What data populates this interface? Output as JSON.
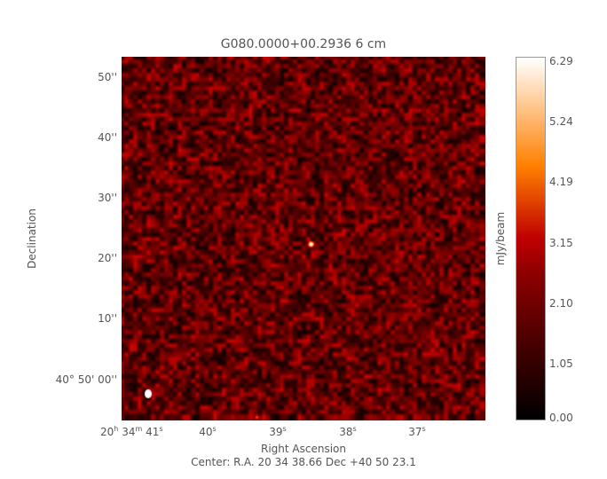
{
  "chart_data": {
    "type": "heatmap",
    "title": "G080.0000+00.2936 6 cm",
    "xlabel": "Right Ascension",
    "ylabel": "Declination",
    "x_ticks": [
      {
        "h": "20",
        "m": "34",
        "s": "41"
      },
      {
        "s": "40"
      },
      {
        "s": "39"
      },
      {
        "s": "38"
      },
      {
        "s": "37"
      }
    ],
    "y_ticks": [
      "50''",
      "40''",
      "30''",
      "20''",
      "10''",
      "40° 50' 00''"
    ],
    "colorbar": {
      "label": "mJy/beam",
      "ticks": [
        "6.29",
        "5.24",
        "4.19",
        "3.15",
        "2.10",
        "1.05",
        "0.00"
      ],
      "range": [
        0,
        6.29
      ],
      "colors": [
        "#000000",
        "#8b0000",
        "#c00000",
        "#ff8000",
        "#ffffff"
      ]
    },
    "center_text": "Center:  R.A. 20 34 38.66     Dec  +40 50 23.1",
    "sources": [
      {
        "ra_s": 38.9,
        "dec_arcsec": 22.5,
        "note": "compact source"
      }
    ]
  }
}
